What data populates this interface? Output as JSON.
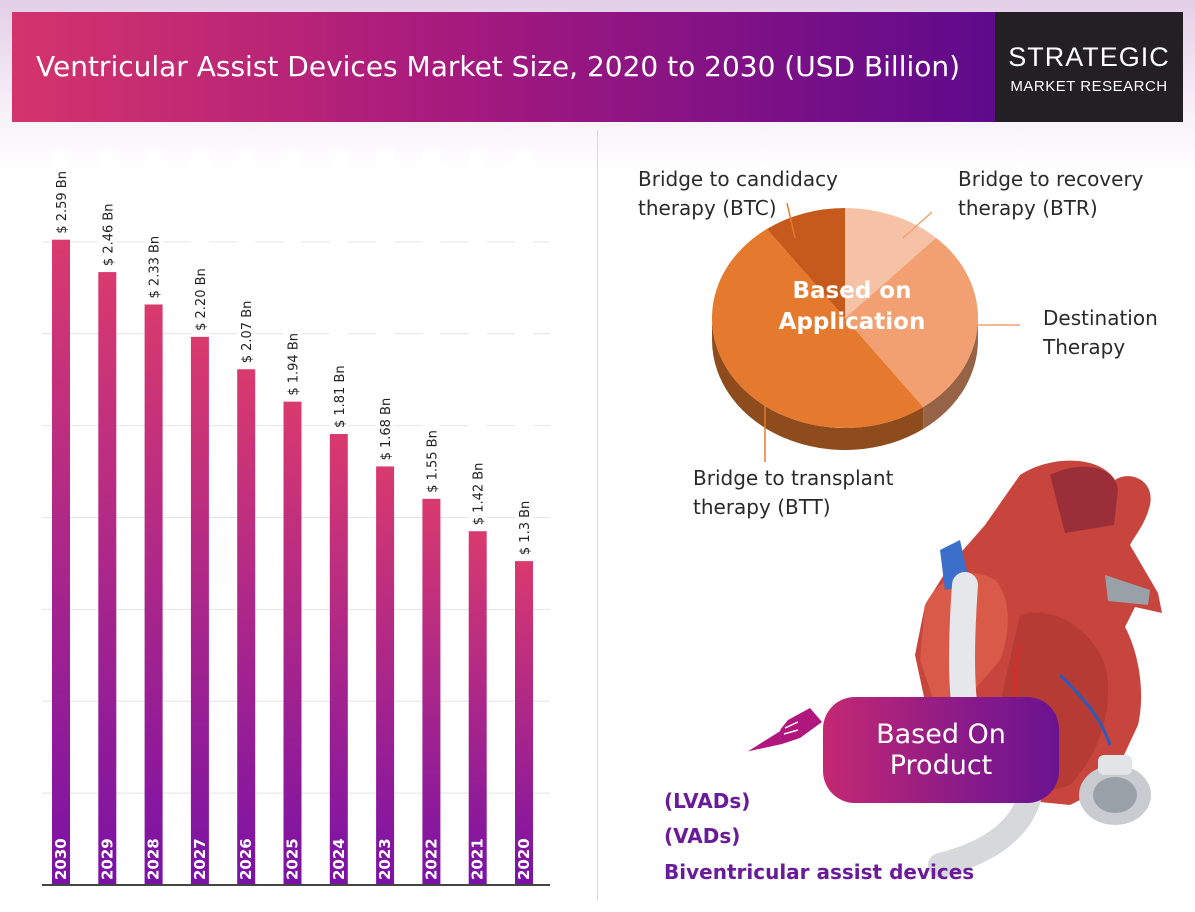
{
  "header": {
    "title": "Ventricular Assist Devices Market Size, 2020 to 2030 (USD Billion)",
    "logo_line1": "STRATEGIC",
    "logo_line2": "MARKET RESEARCH"
  },
  "chart_data": [
    {
      "type": "bar",
      "categories": [
        "2030",
        "2029",
        "2028",
        "2027",
        "2026",
        "2025",
        "2024",
        "2023",
        "2022",
        "2021",
        "2020"
      ],
      "values": [
        2.59,
        2.46,
        2.33,
        2.2,
        2.07,
        1.94,
        1.81,
        1.68,
        1.55,
        1.42,
        1.3
      ],
      "value_labels": [
        "$ 2.59 Bn",
        "$ 2.46 Bn",
        "$ 2.33 Bn",
        "$ 2.20 Bn",
        "$ 2.07 Bn",
        "$ 1.94 Bn",
        "$ 1.81 Bn",
        "$ 1.68 Bn",
        "$ 1.55 Bn",
        "$ 1.42 Bn",
        "$ 1.3 Bn"
      ],
      "ylim": [
        0,
        2.95
      ],
      "grid": true,
      "colors": {
        "top": "#d93a6e",
        "bottom": "#7a12a6",
        "track": "#ffffff"
      }
    },
    {
      "type": "pie",
      "center_label": "Based on Application",
      "slices": [
        {
          "label": "Bridge to recovery therapy (BTR)",
          "value": 12,
          "color": "#f5c2a5"
        },
        {
          "label": "Destination Therapy",
          "value": 28,
          "color": "#f2a072"
        },
        {
          "label": "Bridge to transplant therapy (BTT)",
          "value": 50,
          "color": "#e57a2e"
        },
        {
          "label": "Bridge to candidacy therapy (BTC)",
          "value": 10,
          "color": "#c65a1c"
        }
      ]
    }
  ],
  "pie_labels": {
    "btc_line1": "Bridge to candidacy",
    "btc_line2": "therapy (BTC)",
    "btr_line1": "Bridge to recovery",
    "btr_line2": "therapy (BTR)",
    "dt_line1": "Destination",
    "dt_line2": "Therapy",
    "btt_line1": "Bridge to transplant",
    "btt_line2": "therapy (BTT)",
    "center_line1": "Based on",
    "center_line2": "Application"
  },
  "product": {
    "title_line1": "Based On",
    "title_line2": "Product",
    "items": [
      "(LVADs)",
      "(VADs)",
      "Biventricular assist devices"
    ],
    "color": "#6a1b9a"
  },
  "icons": [
    "pointing-hand-icon",
    "heart-pump-illustration"
  ]
}
